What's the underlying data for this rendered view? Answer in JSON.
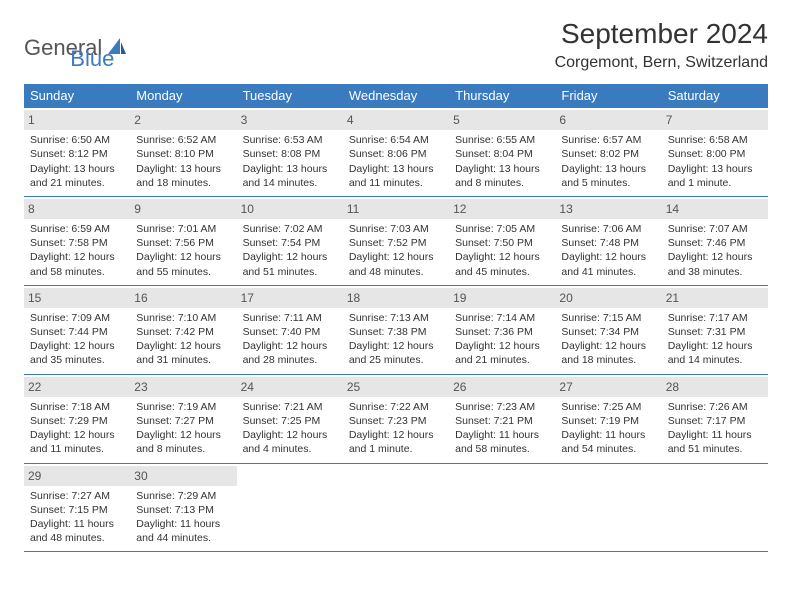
{
  "logo": {
    "text1": "General",
    "text2": "Blue"
  },
  "title": "September 2024",
  "location": "Corgemont, Bern, Switzerland",
  "colors": {
    "accent": "#3a7bbf",
    "daynum_bg": "#e6e6e6",
    "text": "#333333",
    "bg": "#ffffff"
  },
  "day_headers": [
    "Sunday",
    "Monday",
    "Tuesday",
    "Wednesday",
    "Thursday",
    "Friday",
    "Saturday"
  ],
  "weeks": [
    [
      {
        "num": "1",
        "sunrise": "Sunrise: 6:50 AM",
        "sunset": "Sunset: 8:12 PM",
        "daylight": "Daylight: 13 hours and 21 minutes."
      },
      {
        "num": "2",
        "sunrise": "Sunrise: 6:52 AM",
        "sunset": "Sunset: 8:10 PM",
        "daylight": "Daylight: 13 hours and 18 minutes."
      },
      {
        "num": "3",
        "sunrise": "Sunrise: 6:53 AM",
        "sunset": "Sunset: 8:08 PM",
        "daylight": "Daylight: 13 hours and 14 minutes."
      },
      {
        "num": "4",
        "sunrise": "Sunrise: 6:54 AM",
        "sunset": "Sunset: 8:06 PM",
        "daylight": "Daylight: 13 hours and 11 minutes."
      },
      {
        "num": "5",
        "sunrise": "Sunrise: 6:55 AM",
        "sunset": "Sunset: 8:04 PM",
        "daylight": "Daylight: 13 hours and 8 minutes."
      },
      {
        "num": "6",
        "sunrise": "Sunrise: 6:57 AM",
        "sunset": "Sunset: 8:02 PM",
        "daylight": "Daylight: 13 hours and 5 minutes."
      },
      {
        "num": "7",
        "sunrise": "Sunrise: 6:58 AM",
        "sunset": "Sunset: 8:00 PM",
        "daylight": "Daylight: 13 hours and 1 minute."
      }
    ],
    [
      {
        "num": "8",
        "sunrise": "Sunrise: 6:59 AM",
        "sunset": "Sunset: 7:58 PM",
        "daylight": "Daylight: 12 hours and 58 minutes."
      },
      {
        "num": "9",
        "sunrise": "Sunrise: 7:01 AM",
        "sunset": "Sunset: 7:56 PM",
        "daylight": "Daylight: 12 hours and 55 minutes."
      },
      {
        "num": "10",
        "sunrise": "Sunrise: 7:02 AM",
        "sunset": "Sunset: 7:54 PM",
        "daylight": "Daylight: 12 hours and 51 minutes."
      },
      {
        "num": "11",
        "sunrise": "Sunrise: 7:03 AM",
        "sunset": "Sunset: 7:52 PM",
        "daylight": "Daylight: 12 hours and 48 minutes."
      },
      {
        "num": "12",
        "sunrise": "Sunrise: 7:05 AM",
        "sunset": "Sunset: 7:50 PM",
        "daylight": "Daylight: 12 hours and 45 minutes."
      },
      {
        "num": "13",
        "sunrise": "Sunrise: 7:06 AM",
        "sunset": "Sunset: 7:48 PM",
        "daylight": "Daylight: 12 hours and 41 minutes."
      },
      {
        "num": "14",
        "sunrise": "Sunrise: 7:07 AM",
        "sunset": "Sunset: 7:46 PM",
        "daylight": "Daylight: 12 hours and 38 minutes."
      }
    ],
    [
      {
        "num": "15",
        "sunrise": "Sunrise: 7:09 AM",
        "sunset": "Sunset: 7:44 PM",
        "daylight": "Daylight: 12 hours and 35 minutes."
      },
      {
        "num": "16",
        "sunrise": "Sunrise: 7:10 AM",
        "sunset": "Sunset: 7:42 PM",
        "daylight": "Daylight: 12 hours and 31 minutes."
      },
      {
        "num": "17",
        "sunrise": "Sunrise: 7:11 AM",
        "sunset": "Sunset: 7:40 PM",
        "daylight": "Daylight: 12 hours and 28 minutes."
      },
      {
        "num": "18",
        "sunrise": "Sunrise: 7:13 AM",
        "sunset": "Sunset: 7:38 PM",
        "daylight": "Daylight: 12 hours and 25 minutes."
      },
      {
        "num": "19",
        "sunrise": "Sunrise: 7:14 AM",
        "sunset": "Sunset: 7:36 PM",
        "daylight": "Daylight: 12 hours and 21 minutes."
      },
      {
        "num": "20",
        "sunrise": "Sunrise: 7:15 AM",
        "sunset": "Sunset: 7:34 PM",
        "daylight": "Daylight: 12 hours and 18 minutes."
      },
      {
        "num": "21",
        "sunrise": "Sunrise: 7:17 AM",
        "sunset": "Sunset: 7:31 PM",
        "daylight": "Daylight: 12 hours and 14 minutes."
      }
    ],
    [
      {
        "num": "22",
        "sunrise": "Sunrise: 7:18 AM",
        "sunset": "Sunset: 7:29 PM",
        "daylight": "Daylight: 12 hours and 11 minutes."
      },
      {
        "num": "23",
        "sunrise": "Sunrise: 7:19 AM",
        "sunset": "Sunset: 7:27 PM",
        "daylight": "Daylight: 12 hours and 8 minutes."
      },
      {
        "num": "24",
        "sunrise": "Sunrise: 7:21 AM",
        "sunset": "Sunset: 7:25 PM",
        "daylight": "Daylight: 12 hours and 4 minutes."
      },
      {
        "num": "25",
        "sunrise": "Sunrise: 7:22 AM",
        "sunset": "Sunset: 7:23 PM",
        "daylight": "Daylight: 12 hours and 1 minute."
      },
      {
        "num": "26",
        "sunrise": "Sunrise: 7:23 AM",
        "sunset": "Sunset: 7:21 PM",
        "daylight": "Daylight: 11 hours and 58 minutes."
      },
      {
        "num": "27",
        "sunrise": "Sunrise: 7:25 AM",
        "sunset": "Sunset: 7:19 PM",
        "daylight": "Daylight: 11 hours and 54 minutes."
      },
      {
        "num": "28",
        "sunrise": "Sunrise: 7:26 AM",
        "sunset": "Sunset: 7:17 PM",
        "daylight": "Daylight: 11 hours and 51 minutes."
      }
    ],
    [
      {
        "num": "29",
        "sunrise": "Sunrise: 7:27 AM",
        "sunset": "Sunset: 7:15 PM",
        "daylight": "Daylight: 11 hours and 48 minutes."
      },
      {
        "num": "30",
        "sunrise": "Sunrise: 7:29 AM",
        "sunset": "Sunset: 7:13 PM",
        "daylight": "Daylight: 11 hours and 44 minutes."
      },
      null,
      null,
      null,
      null,
      null
    ]
  ]
}
